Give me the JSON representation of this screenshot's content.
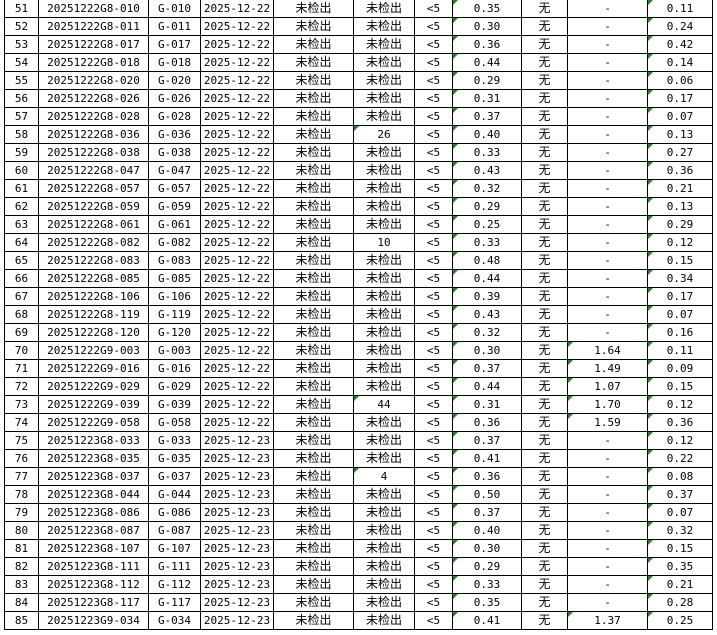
{
  "sheet": {
    "rows": [
      [
        "51",
        "20251222G8-010",
        "G-010",
        "2025-12-22",
        "未检出",
        "未检出",
        "<5",
        "0.35",
        "无",
        "-",
        "0.11"
      ],
      [
        "52",
        "20251222G8-011",
        "G-011",
        "2025-12-22",
        "未检出",
        "未检出",
        "<5",
        "0.30",
        "无",
        "-",
        "0.24"
      ],
      [
        "53",
        "20251222G8-017",
        "G-017",
        "2025-12-22",
        "未检出",
        "未检出",
        "<5",
        "0.36",
        "无",
        "-",
        "0.42"
      ],
      [
        "54",
        "20251222G8-018",
        "G-018",
        "2025-12-22",
        "未检出",
        "未检出",
        "<5",
        "0.44",
        "无",
        "-",
        "0.14"
      ],
      [
        "55",
        "20251222G8-020",
        "G-020",
        "2025-12-22",
        "未检出",
        "未检出",
        "<5",
        "0.29",
        "无",
        "-",
        "0.06"
      ],
      [
        "56",
        "20251222G8-026",
        "G-026",
        "2025-12-22",
        "未检出",
        "未检出",
        "<5",
        "0.31",
        "无",
        "-",
        "0.17"
      ],
      [
        "57",
        "20251222G8-028",
        "G-028",
        "2025-12-22",
        "未检出",
        "未检出",
        "<5",
        "0.37",
        "无",
        "-",
        "0.07"
      ],
      [
        "58",
        "20251222G8-036",
        "G-036",
        "2025-12-22",
        "未检出",
        "26",
        "<5",
        "0.40",
        "无",
        "-",
        "0.13"
      ],
      [
        "59",
        "20251222G8-038",
        "G-038",
        "2025-12-22",
        "未检出",
        "未检出",
        "<5",
        "0.33",
        "无",
        "-",
        "0.27"
      ],
      [
        "60",
        "20251222G8-047",
        "G-047",
        "2025-12-22",
        "未检出",
        "未检出",
        "<5",
        "0.43",
        "无",
        "-",
        "0.36"
      ],
      [
        "61",
        "20251222G8-057",
        "G-057",
        "2025-12-22",
        "未检出",
        "未检出",
        "<5",
        "0.32",
        "无",
        "-",
        "0.21"
      ],
      [
        "62",
        "20251222G8-059",
        "G-059",
        "2025-12-22",
        "未检出",
        "未检出",
        "<5",
        "0.29",
        "无",
        "-",
        "0.13"
      ],
      [
        "63",
        "20251222G8-061",
        "G-061",
        "2025-12-22",
        "未检出",
        "未检出",
        "<5",
        "0.25",
        "无",
        "-",
        "0.29"
      ],
      [
        "64",
        "20251222G8-082",
        "G-082",
        "2025-12-22",
        "未检出",
        "10",
        "<5",
        "0.33",
        "无",
        "-",
        "0.12"
      ],
      [
        "65",
        "20251222G8-083",
        "G-083",
        "2025-12-22",
        "未检出",
        "未检出",
        "<5",
        "0.48",
        "无",
        "-",
        "0.15"
      ],
      [
        "66",
        "20251222G8-085",
        "G-085",
        "2025-12-22",
        "未检出",
        "未检出",
        "<5",
        "0.44",
        "无",
        "-",
        "0.34"
      ],
      [
        "67",
        "20251222G8-106",
        "G-106",
        "2025-12-22",
        "未检出",
        "未检出",
        "<5",
        "0.39",
        "无",
        "-",
        "0.17"
      ],
      [
        "68",
        "20251222G8-119",
        "G-119",
        "2025-12-22",
        "未检出",
        "未检出",
        "<5",
        "0.43",
        "无",
        "-",
        "0.07"
      ],
      [
        "69",
        "20251222G8-120",
        "G-120",
        "2025-12-22",
        "未检出",
        "未检出",
        "<5",
        "0.32",
        "无",
        "-",
        "0.16"
      ],
      [
        "70",
        "20251222G9-003",
        "G-003",
        "2025-12-22",
        "未检出",
        "未检出",
        "<5",
        "0.30",
        "无",
        "1.64",
        "0.11"
      ],
      [
        "71",
        "20251222G9-016",
        "G-016",
        "2025-12-22",
        "未检出",
        "未检出",
        "<5",
        "0.37",
        "无",
        "1.49",
        "0.09"
      ],
      [
        "72",
        "20251222G9-029",
        "G-029",
        "2025-12-22",
        "未检出",
        "未检出",
        "<5",
        "0.44",
        "无",
        "1.07",
        "0.15"
      ],
      [
        "73",
        "20251222G9-039",
        "G-039",
        "2025-12-22",
        "未检出",
        "44",
        "<5",
        "0.31",
        "无",
        "1.70",
        "0.12"
      ],
      [
        "74",
        "20251222G9-058",
        "G-058",
        "2025-12-22",
        "未检出",
        "未检出",
        "<5",
        "0.36",
        "无",
        "1.59",
        "0.36"
      ],
      [
        "75",
        "20251223G8-033",
        "G-033",
        "2025-12-23",
        "未检出",
        "未检出",
        "<5",
        "0.37",
        "无",
        "-",
        "0.12"
      ],
      [
        "76",
        "20251223G8-035",
        "G-035",
        "2025-12-23",
        "未检出",
        "未检出",
        "<5",
        "0.41",
        "无",
        "-",
        "0.22"
      ],
      [
        "77",
        "20251223G8-037",
        "G-037",
        "2025-12-23",
        "未检出",
        "4",
        "<5",
        "0.36",
        "无",
        "-",
        "0.08"
      ],
      [
        "78",
        "20251223G8-044",
        "G-044",
        "2025-12-23",
        "未检出",
        "未检出",
        "<5",
        "0.50",
        "无",
        "-",
        "0.37"
      ],
      [
        "79",
        "20251223G8-086",
        "G-086",
        "2025-12-23",
        "未检出",
        "未检出",
        "<5",
        "0.37",
        "无",
        "-",
        "0.07"
      ],
      [
        "80",
        "20251223G8-087",
        "G-087",
        "2025-12-23",
        "未检出",
        "未检出",
        "<5",
        "0.40",
        "无",
        "-",
        "0.32"
      ],
      [
        "81",
        "20251223G8-107",
        "G-107",
        "2025-12-23",
        "未检出",
        "未检出",
        "<5",
        "0.30",
        "无",
        "-",
        "0.15"
      ],
      [
        "82",
        "20251223G8-111",
        "G-111",
        "2025-12-23",
        "未检出",
        "未检出",
        "<5",
        "0.29",
        "无",
        "-",
        "0.35"
      ],
      [
        "83",
        "20251223G8-112",
        "G-112",
        "2025-12-23",
        "未检出",
        "未检出",
        "<5",
        "0.33",
        "无",
        "-",
        "0.21"
      ],
      [
        "84",
        "20251223G8-117",
        "G-117",
        "2025-12-23",
        "未检出",
        "未检出",
        "<5",
        "0.35",
        "无",
        "-",
        "0.28"
      ],
      [
        "85",
        "20251223G9-034",
        "G-034",
        "2025-12-23",
        "未检出",
        "未检出",
        "<5",
        "0.41",
        "无",
        "1.37",
        "0.25"
      ]
    ],
    "colors": {
      "grid": "#000000",
      "number_marker": "#1a8a1a"
    }
  }
}
